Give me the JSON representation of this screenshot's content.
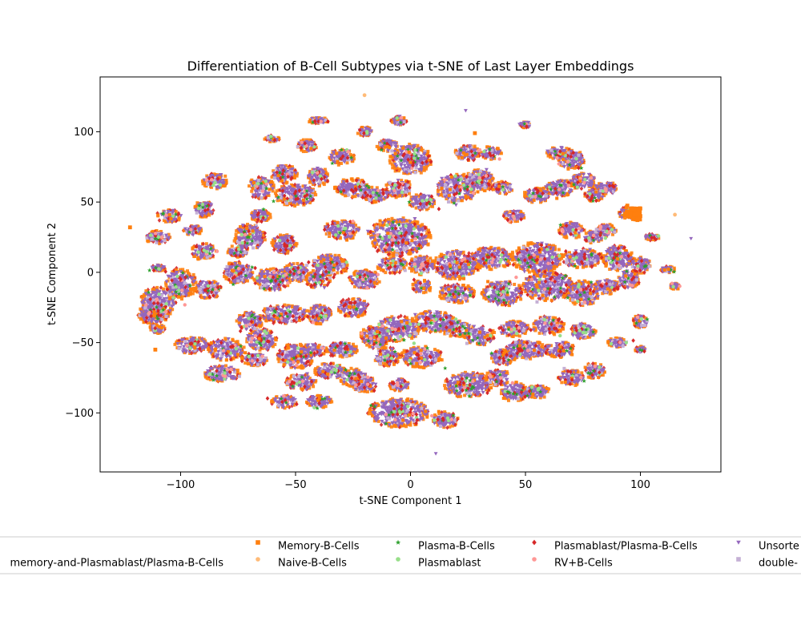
{
  "chart_data": {
    "type": "scatter",
    "title": "Differentiation of B-Cell Subtypes via t-SNE of Last Layer Embeddings",
    "xlabel": "t-SNE Component 1",
    "ylabel": "t-SNE Component 2",
    "xlim": [
      -135,
      135
    ],
    "ylim": [
      -142,
      139
    ],
    "x_ticks": [
      -100,
      -50,
      0,
      50,
      100
    ],
    "y_ticks": [
      -100,
      -50,
      0,
      50,
      100
    ],
    "x_tick_labels": [
      "−100",
      "−50",
      "0",
      "50",
      "100"
    ],
    "y_tick_labels": [
      "−100",
      "−50",
      "0",
      "50",
      "100"
    ],
    "grid": false,
    "legend_position": "below-chart",
    "legend_columns": 6,
    "series": [
      {
        "name": "memory-and-Plasmablast/Plasma-B-Cells",
        "color": "#1f77b4",
        "marker": "none"
      },
      {
        "name": "Memory-B-Cells",
        "color": "#ff7f0e",
        "marker": "square"
      },
      {
        "name": "Naive-B-Cells",
        "color": "#ffbb78",
        "marker": "circle"
      },
      {
        "name": "Plasma-B-Cells",
        "color": "#2ca02c",
        "marker": "star"
      },
      {
        "name": "Plasmablast",
        "color": "#98df8a",
        "marker": "circle"
      },
      {
        "name": "Plasmablast/Plasma-B-Cells",
        "color": "#d62728",
        "marker": "diamond"
      },
      {
        "name": "RV+B-Cells",
        "color": "#ff9896",
        "marker": "circle"
      },
      {
        "name": "Unsorte",
        "color": "#9467bd",
        "marker": "triangle-down"
      },
      {
        "name": "double-",
        "color": "#c5b0d5",
        "marker": "square"
      }
    ],
    "clusters": [
      [
        -110,
        -22,
        7,
        10
      ],
      [
        -112,
        -30,
        6,
        6
      ],
      [
        -100,
        -8,
        6,
        10
      ],
      [
        -88,
        -12,
        5,
        6
      ],
      [
        -95,
        -52,
        7,
        5
      ],
      [
        -80,
        -55,
        7,
        7
      ],
      [
        -82,
        -72,
        7,
        5
      ],
      [
        -65,
        -48,
        6,
        7
      ],
      [
        -68,
        -62,
        5,
        4
      ],
      [
        -50,
        -60,
        7,
        8
      ],
      [
        -48,
        -78,
        6,
        5
      ],
      [
        -55,
        -92,
        5,
        4
      ],
      [
        -40,
        -92,
        5,
        4
      ],
      [
        -35,
        -70,
        6,
        5
      ],
      [
        -25,
        -75,
        5,
        6
      ],
      [
        -42,
        -55,
        5,
        4
      ],
      [
        -30,
        -55,
        6,
        5
      ],
      [
        -15,
        -45,
        6,
        6
      ],
      [
        -5,
        -40,
        8,
        8
      ],
      [
        10,
        -35,
        8,
        7
      ],
      [
        5,
        -60,
        8,
        7
      ],
      [
        -10,
        -60,
        5,
        6
      ],
      [
        -20,
        -80,
        5,
        5
      ],
      [
        -5,
        -80,
        4,
        4
      ],
      [
        -5,
        -100,
        12,
        9
      ],
      [
        15,
        -105,
        5,
        5
      ],
      [
        25,
        -80,
        9,
        8
      ],
      [
        45,
        -85,
        5,
        6
      ],
      [
        55,
        -85,
        5,
        4
      ],
      [
        38,
        -75,
        5,
        5
      ],
      [
        50,
        -55,
        8,
        6
      ],
      [
        40,
        -60,
        5,
        5
      ],
      [
        65,
        -55,
        6,
        5
      ],
      [
        80,
        -70,
        4,
        5
      ],
      [
        70,
        -75,
        5,
        5
      ],
      [
        75,
        -42,
        5,
        5
      ],
      [
        90,
        -50,
        4,
        3
      ],
      [
        100,
        -35,
        3,
        4
      ],
      [
        60,
        -38,
        6,
        6
      ],
      [
        45,
        -40,
        6,
        5
      ],
      [
        30,
        -45,
        6,
        6
      ],
      [
        20,
        -40,
        6,
        5
      ],
      [
        -55,
        -30,
        9,
        6
      ],
      [
        -70,
        -35,
        5,
        6
      ],
      [
        -60,
        -5,
        7,
        7
      ],
      [
        -75,
        0,
        6,
        7
      ],
      [
        -70,
        25,
        6,
        8
      ],
      [
        -55,
        20,
        5,
        6
      ],
      [
        -50,
        0,
        5,
        6
      ],
      [
        -35,
        5,
        7,
        7
      ],
      [
        -20,
        -5,
        6,
        6
      ],
      [
        -25,
        -25,
        6,
        6
      ],
      [
        -40,
        -30,
        5,
        6
      ],
      [
        -40,
        -5,
        5,
        6
      ],
      [
        -30,
        30,
        7,
        6
      ],
      [
        -5,
        25,
        12,
        12
      ],
      [
        -8,
        5,
        6,
        5
      ],
      [
        5,
        5,
        5,
        6
      ],
      [
        20,
        5,
        9,
        9
      ],
      [
        20,
        -15,
        7,
        6
      ],
      [
        35,
        10,
        8,
        7
      ],
      [
        40,
        -15,
        8,
        8
      ],
      [
        55,
        10,
        10,
        10
      ],
      [
        60,
        -10,
        10,
        9
      ],
      [
        75,
        -15,
        6,
        8
      ],
      [
        85,
        -10,
        5,
        5
      ],
      [
        75,
        10,
        8,
        6
      ],
      [
        90,
        10,
        6,
        8
      ],
      [
        95,
        -5,
        4,
        6
      ],
      [
        100,
        5,
        4,
        5
      ],
      [
        80,
        25,
        4,
        4
      ],
      [
        70,
        30,
        5,
        5
      ],
      [
        85,
        30,
        4,
        4
      ],
      [
        95,
        42,
        4,
        4
      ],
      [
        80,
        55,
        4,
        4
      ],
      [
        70,
        80,
        5,
        6
      ],
      [
        65,
        60,
        6,
        5
      ],
      [
        55,
        55,
        5,
        5
      ],
      [
        40,
        60,
        4,
        4
      ],
      [
        30,
        65,
        6,
        7
      ],
      [
        20,
        60,
        8,
        9
      ],
      [
        45,
        40,
        4,
        4
      ],
      [
        25,
        85,
        5,
        5
      ],
      [
        35,
        85,
        4,
        4
      ],
      [
        0,
        80,
        8,
        10
      ],
      [
        -10,
        90,
        4,
        4
      ],
      [
        -5,
        60,
        5,
        6
      ],
      [
        -25,
        60,
        7,
        6
      ],
      [
        -15,
        55,
        5,
        5
      ],
      [
        5,
        50,
        5,
        5
      ],
      [
        -30,
        82,
        5,
        5
      ],
      [
        -40,
        68,
        4,
        6
      ],
      [
        -50,
        55,
        8,
        7
      ],
      [
        -55,
        70,
        5,
        6
      ],
      [
        -65,
        60,
        5,
        7
      ],
      [
        -65,
        40,
        4,
        4
      ],
      [
        -85,
        65,
        5,
        5
      ],
      [
        -90,
        45,
        4,
        5
      ],
      [
        -105,
        40,
        5,
        4
      ],
      [
        -110,
        25,
        5,
        4
      ],
      [
        -90,
        15,
        5,
        5
      ],
      [
        -75,
        15,
        4,
        4
      ],
      [
        -45,
        90,
        4,
        4
      ],
      [
        -20,
        100,
        3,
        3
      ],
      [
        -5,
        108,
        3,
        3
      ],
      [
        50,
        105,
        2,
        2
      ],
      [
        65,
        85,
        5,
        4
      ],
      [
        75,
        65,
        5,
        5
      ],
      [
        85,
        60,
        4,
        4
      ],
      [
        105,
        25,
        3,
        2
      ],
      [
        112,
        2,
        3,
        2
      ],
      [
        115,
        -10,
        2,
        2
      ],
      [
        -110,
        3,
        3,
        2
      ],
      [
        -95,
        30,
        4,
        3
      ],
      [
        -60,
        95,
        3,
        2
      ],
      [
        -40,
        108,
        4,
        2
      ],
      [
        -15,
        -50,
        4,
        4
      ],
      [
        5,
        -10,
        4,
        4
      ],
      [
        -110,
        -40,
        3,
        3
      ],
      [
        100,
        -55,
        2,
        2
      ]
    ],
    "orange_blob": [
      97,
      42,
      4,
      5
    ]
  }
}
